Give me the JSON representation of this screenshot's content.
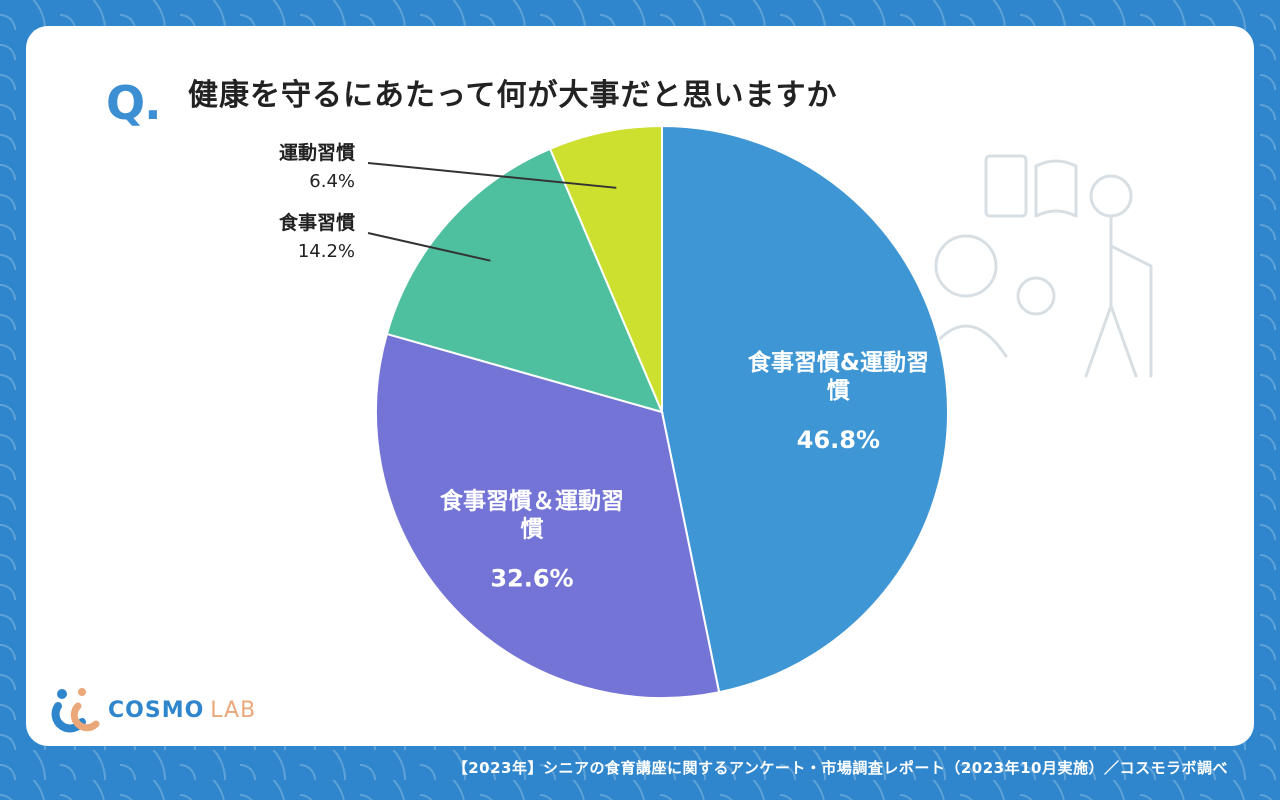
{
  "question_mark": "Q.",
  "title": "健康を守るにあたって何が大事だと思いますか",
  "footer": "【2023年】シニアの食育講座に関するアンケート・市場調査レポート（2023年10月実施）／コスモラボ調べ",
  "logo": {
    "main": "COSMO",
    "sub": "LAB"
  },
  "colors": {
    "slice1": "#3f96d4",
    "slice2": "#7474d6",
    "slice3": "#4fc09f",
    "slice4": "#cde030",
    "callout_text": "#222222"
  },
  "chart_data": {
    "type": "pie",
    "slices": [
      {
        "label": "食事習慣&運動習慣",
        "value": 46.8,
        "value_label": "46.8%",
        "label_lines": [
          "食事習慣&運動習",
          "慣"
        ],
        "position": "inside"
      },
      {
        "label": "食事習慣＆運動習慣",
        "value": 32.6,
        "value_label": "32.6%",
        "label_lines": [
          "食事習慣＆運動習",
          "慣"
        ],
        "position": "inside"
      },
      {
        "label": "食事習慣",
        "value": 14.2,
        "value_label": "14.2%",
        "position": "outside"
      },
      {
        "label": "運動習慣",
        "value": 6.4,
        "value_label": "6.4%",
        "position": "outside"
      }
    ],
    "start": "12 o'clock",
    "direction": "clockwise"
  }
}
